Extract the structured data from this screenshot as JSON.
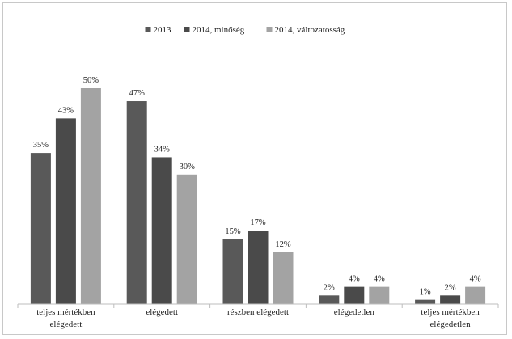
{
  "chart_data": {
    "type": "bar",
    "title": "",
    "xlabel": "",
    "ylabel": "",
    "ylim": [
      0,
      50
    ],
    "grid": false,
    "legend_position": "top-center",
    "categories": [
      [
        "teljes mértékben",
        "elégedett"
      ],
      [
        "elégedett"
      ],
      [
        "részben elégedett"
      ],
      [
        "elégedetlen"
      ],
      [
        "teljes mértékben",
        "elégedetlen"
      ]
    ],
    "series": [
      {
        "name": "2013",
        "color": "#595959",
        "values": [
          35,
          47,
          15,
          2,
          1
        ],
        "labels": [
          "35%",
          "47%",
          "15%",
          "2%",
          "1%"
        ]
      },
      {
        "name": "2014, minőség",
        "color": "#4a4a4a",
        "values": [
          43,
          34,
          17,
          4,
          2
        ],
        "labels": [
          "43%",
          "34%",
          "17%",
          "4%",
          "2%"
        ]
      },
      {
        "name": "2014, változatosság",
        "color": "#a3a3a3",
        "values": [
          50,
          30,
          12,
          4,
          4
        ],
        "labels": [
          "50%",
          "30%",
          "12%",
          "4%",
          "4%"
        ]
      }
    ]
  }
}
